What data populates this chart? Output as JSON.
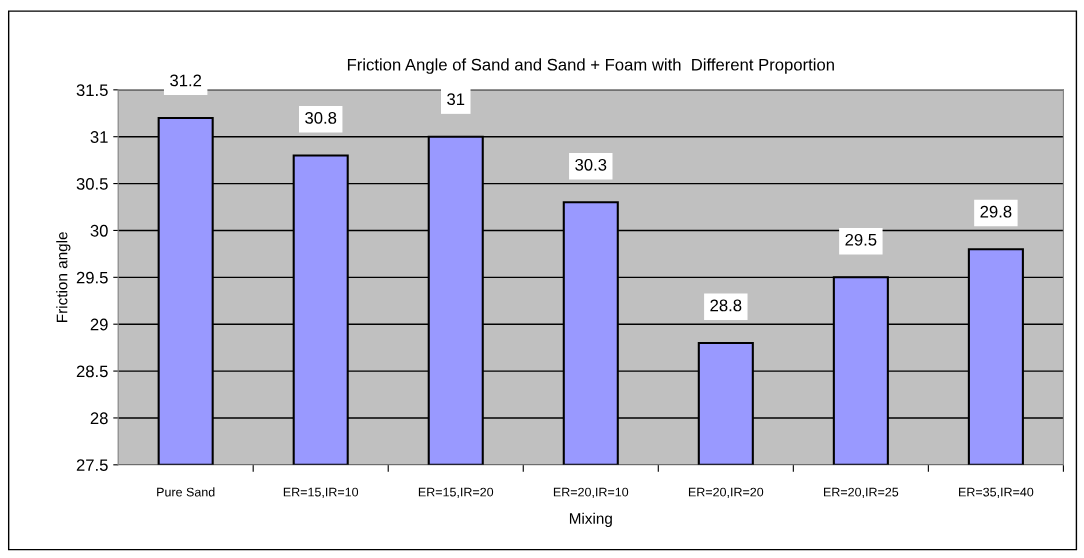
{
  "chart_data": {
    "type": "bar",
    "title": "Friction Angle of Sand and Sand + Foam with  Different Proportion",
    "xlabel": "Mixing",
    "ylabel": "Friction angle",
    "categories": [
      "Pure Sand",
      "ER=15,IR=10",
      "ER=15,IR=20",
      "ER=20,IR=10",
      "ER=20,IR=20",
      "ER=20,IR=25",
      "ER=35,IR=40"
    ],
    "values": [
      31.2,
      30.8,
      31,
      30.3,
      28.8,
      29.5,
      29.8
    ],
    "color": "#9999ff",
    "ylim": [
      27.5,
      31.5
    ],
    "yticks": [
      27.5,
      28,
      28.5,
      29,
      29.5,
      30,
      30.5,
      31,
      31.5
    ],
    "grid": "y",
    "data_labels": true
  }
}
